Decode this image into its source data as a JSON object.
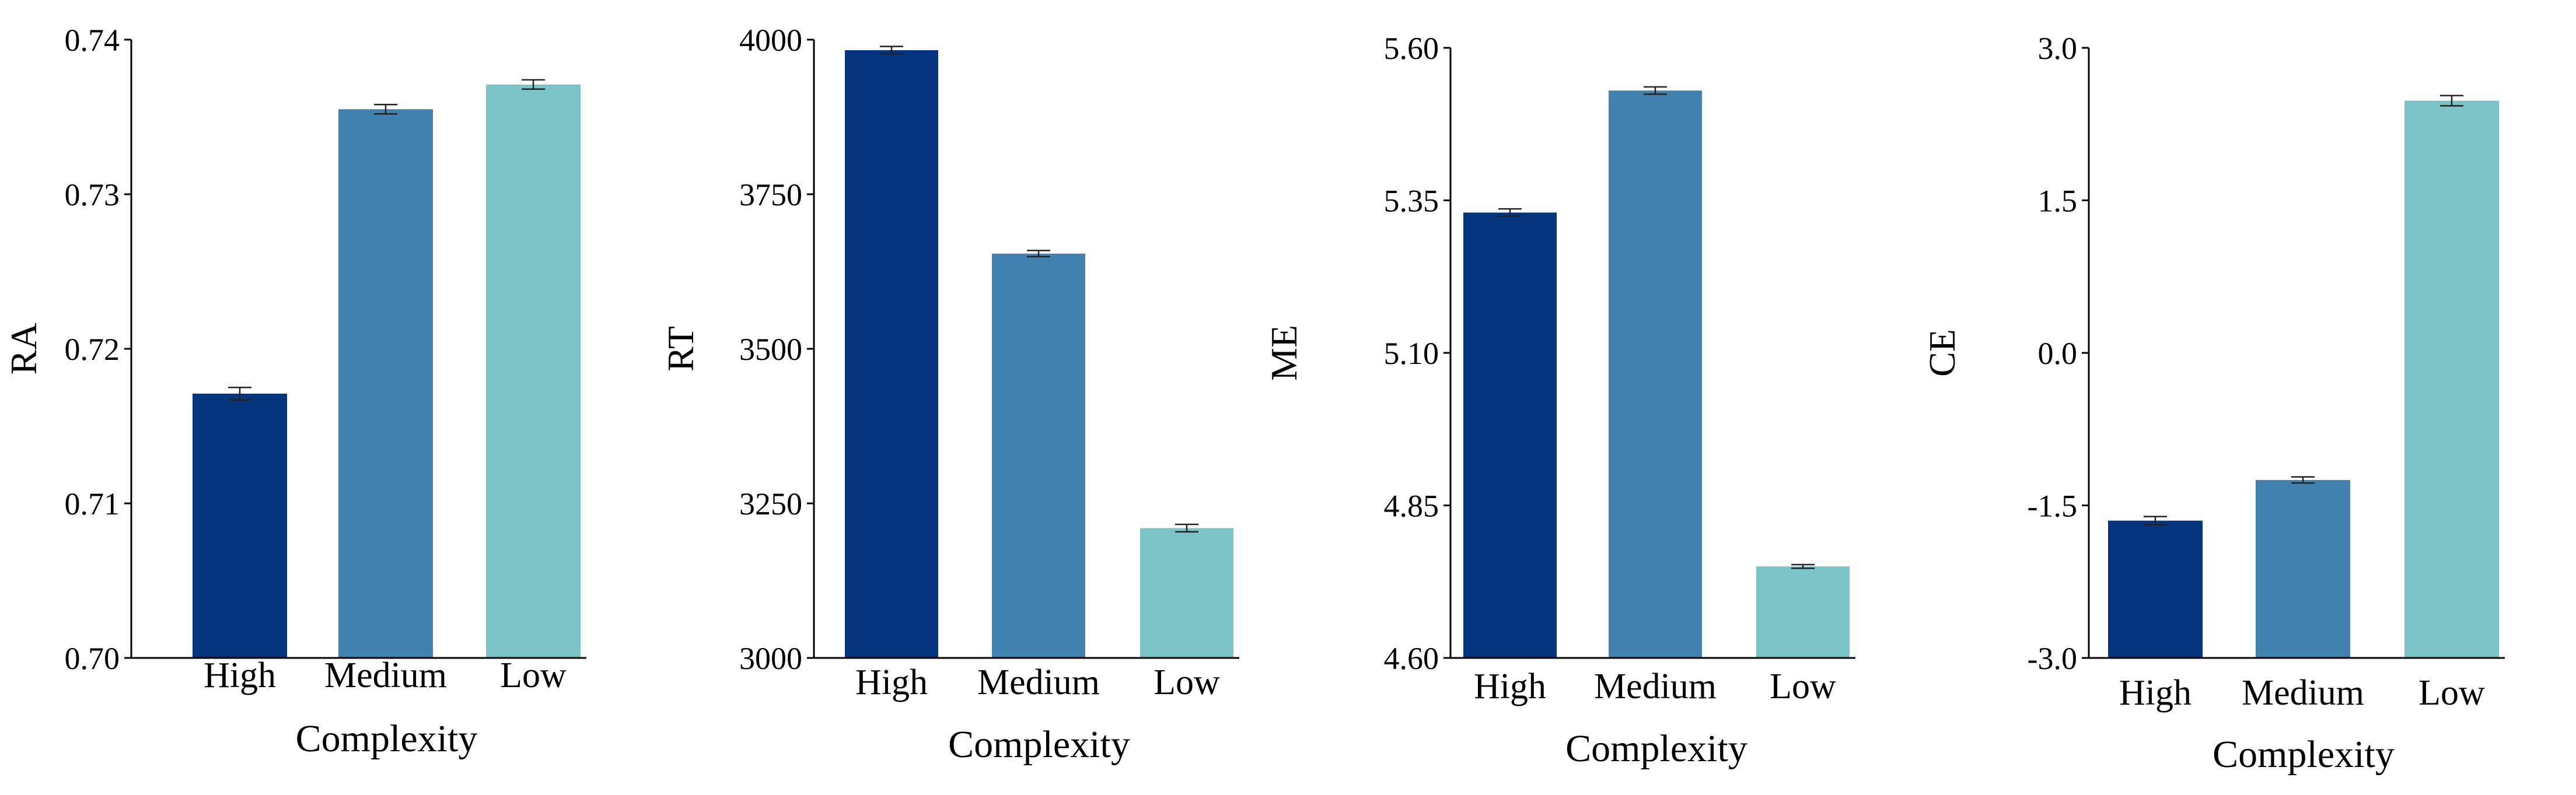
{
  "colors": {
    "High": "#063580",
    "Medium": "#4282b0",
    "Low": "#7cc3c7",
    "axis": "#000000"
  },
  "chart_data": [
    {
      "type": "bar",
      "title": "",
      "xlabel": "Complexity",
      "ylabel": "RA",
      "categories": [
        "High",
        "Medium",
        "Low"
      ],
      "values": [
        0.7171,
        0.7355,
        0.7371
      ],
      "errors": [
        0.0004,
        0.0003,
        0.0003
      ],
      "ylim": [
        0.7,
        0.74
      ],
      "ticks": [
        0.7,
        0.71,
        0.72,
        0.73,
        0.74
      ],
      "tick_labels": [
        "0.70",
        "0.71",
        "0.72",
        "0.73",
        "0.74"
      ],
      "grid": false
    },
    {
      "type": "bar",
      "title": "",
      "xlabel": "Complexity",
      "ylabel": "RT",
      "categories": [
        "High",
        "Medium",
        "Low"
      ],
      "values": [
        3983,
        3654,
        3210
      ],
      "errors": [
        6,
        5,
        6
      ],
      "ylim": [
        3000,
        4000
      ],
      "ticks": [
        3000,
        3250,
        3500,
        3750,
        4000
      ],
      "tick_labels": [
        "3000",
        "3250",
        "3500",
        "3750",
        "4000"
      ],
      "grid": false
    },
    {
      "type": "bar",
      "title": "",
      "xlabel": "Complexity",
      "ylabel": "ME",
      "categories": [
        "High",
        "Medium",
        "Low"
      ],
      "values": [
        5.33,
        5.53,
        4.75
      ],
      "errors": [
        0.006,
        0.006,
        0.003
      ],
      "ylim": [
        4.6,
        5.6
      ],
      "ticks": [
        4.6,
        4.85,
        5.1,
        5.35,
        5.6
      ],
      "tick_labels": [
        "4.60",
        "4.85",
        "5.10",
        "5.35",
        "5.60"
      ],
      "grid": false
    },
    {
      "type": "bar",
      "title": "",
      "xlabel": "Complexity",
      "ylabel": "CE",
      "categories": [
        "High",
        "Medium",
        "Low"
      ],
      "values": [
        -1.65,
        -1.25,
        2.48
      ],
      "errors": [
        0.04,
        0.03,
        0.05
      ],
      "ylim": [
        -3.0,
        3.0
      ],
      "ticks": [
        -3.0,
        -1.5,
        0.0,
        1.5,
        3.0
      ],
      "tick_labels": [
        "-3.0",
        "-1.5",
        "0.0",
        "1.5",
        "3.0"
      ],
      "grid": false
    }
  ]
}
